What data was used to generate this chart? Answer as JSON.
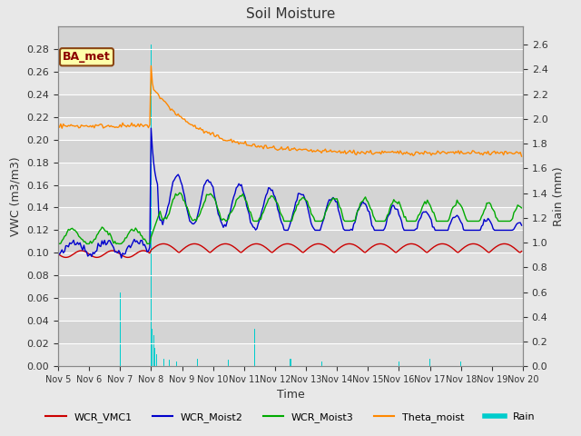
{
  "title": "Soil Moisture",
  "ylabel_left": "VWC (m3/m3)",
  "ylabel_right": "Rain (mm)",
  "xlabel": "Time",
  "annotation": "BA_met",
  "ylim_left": [
    0.0,
    0.3
  ],
  "ylim_right": [
    0.0,
    2.75
  ],
  "yticks_left": [
    0.0,
    0.02,
    0.04,
    0.06,
    0.08,
    0.1,
    0.12,
    0.14,
    0.16,
    0.18,
    0.2,
    0.22,
    0.24,
    0.26,
    0.28
  ],
  "yticks_right": [
    0.0,
    0.2,
    0.4,
    0.6,
    0.8,
    1.0,
    1.2,
    1.4,
    1.6,
    1.8,
    2.0,
    2.2,
    2.4,
    2.6
  ],
  "fig_bg_color": "#e8e8e8",
  "plot_bg_color": "#d4d4d4",
  "grid_color": "#ffffff",
  "colors": {
    "WCR_VMC1": "#cc0000",
    "WCR_Moist2": "#0000cc",
    "WCR_Moist3": "#00aa00",
    "Theta_moist": "#ff8800",
    "Rain": "#00cccc"
  },
  "line_width": 1.0,
  "n_hours": 360,
  "rain_event_hour": 72,
  "xtick_labels": [
    "Nov 5",
    "Nov 6",
    "Nov 7",
    "Nov 8",
    "Nov 9",
    "Nov 10",
    "Nov 11",
    "Nov 12",
    "Nov 13",
    "Nov 14",
    "Nov 15",
    "Nov 16",
    "Nov 17",
    "Nov 18",
    "Nov 19",
    "Nov 20"
  ],
  "legend_labels": [
    "WCR_VMC1",
    "WCR_Moist2",
    "WCR_Moist3",
    "Theta_moist",
    "Rain"
  ]
}
